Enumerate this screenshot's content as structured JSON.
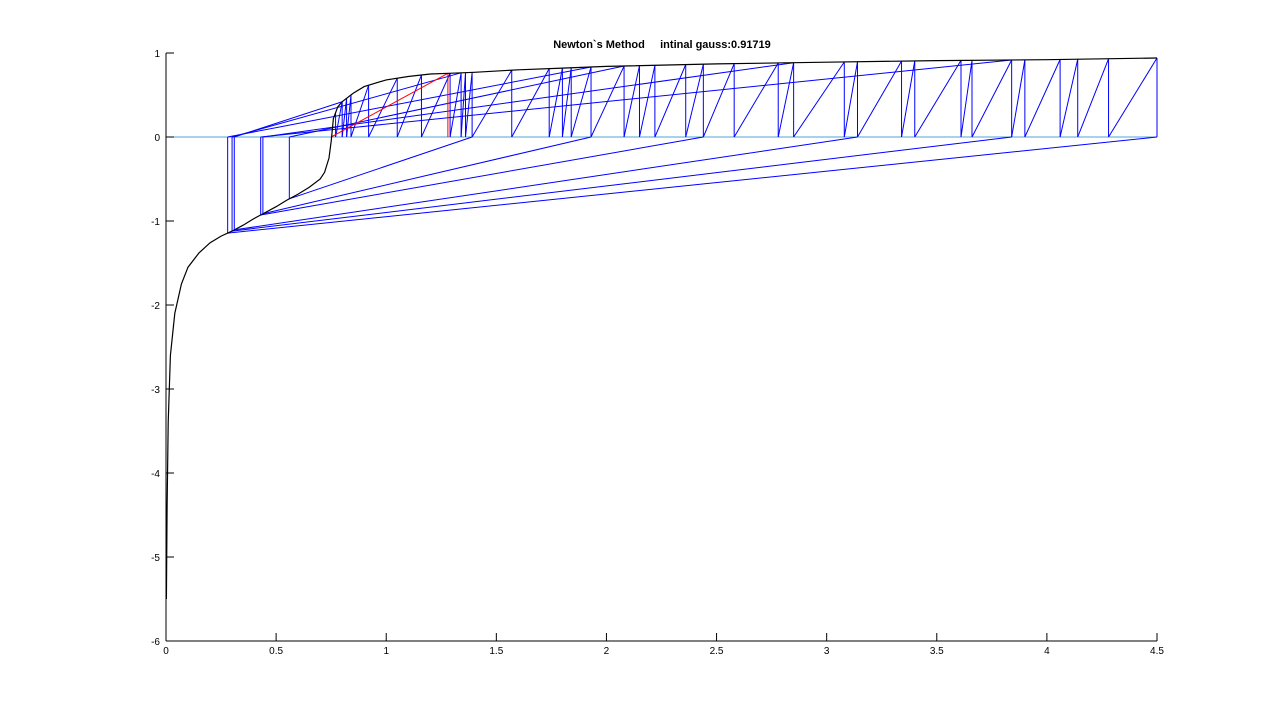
{
  "chart_data": {
    "type": "line",
    "title": "Newton`s Method     intinal gauss:0.91719",
    "xlabel": "",
    "ylabel": "",
    "xlim": [
      0,
      4.5
    ],
    "ylim": [
      -6,
      1
    ],
    "x_ticks": [
      0,
      0.5,
      1,
      1.5,
      2,
      2.5,
      3,
      3.5,
      4,
      4.5
    ],
    "x_tick_labels": [
      "0",
      "0.5",
      "1",
      "1.5",
      "2",
      "2.5",
      "3",
      "3.5",
      "4",
      "4.5"
    ],
    "y_ticks": [
      1,
      0,
      -1,
      -2,
      -3,
      -4,
      -5,
      -6
    ],
    "y_tick_labels": [
      "1",
      "0",
      "-1",
      "-2",
      "-3",
      "-4",
      "-5",
      "-6"
    ],
    "grid": false,
    "legend": "none",
    "colors": {
      "function": "#000000",
      "iterations": "#0000ff",
      "final_iteration": "#ff0000",
      "zero_line": "#4da6d9"
    },
    "series": [
      {
        "role": "function",
        "x": [
          0.002,
          0.005,
          0.01,
          0.02,
          0.04,
          0.07,
          0.1,
          0.15,
          0.2,
          0.25,
          0.3,
          0.35,
          0.4,
          0.45,
          0.5,
          0.55,
          0.6,
          0.65,
          0.7,
          0.72,
          0.74,
          0.75,
          0.76,
          0.78,
          0.8,
          0.85,
          0.9,
          1.0,
          1.1,
          1.2,
          1.3,
          1.4,
          1.6,
          1.8,
          2.0,
          2.5,
          3.0,
          3.5,
          4.0,
          4.5
        ],
        "y": [
          -5.5,
          -4.4,
          -3.4,
          -2.6,
          -2.1,
          -1.75,
          -1.55,
          -1.38,
          -1.26,
          -1.18,
          -1.12,
          -1.05,
          -0.97,
          -0.9,
          -0.83,
          -0.75,
          -0.68,
          -0.6,
          -0.5,
          -0.42,
          -0.25,
          -0.05,
          0.22,
          0.36,
          0.42,
          0.52,
          0.6,
          0.68,
          0.72,
          0.75,
          0.76,
          0.77,
          0.8,
          0.82,
          0.84,
          0.87,
          0.89,
          0.91,
          0.92,
          0.94
        ]
      },
      {
        "role": "zero_line",
        "x": [
          0,
          4.5
        ],
        "y": [
          0,
          0
        ]
      }
    ],
    "iterations_x": [
      4.5,
      4.28,
      4.14,
      4.06,
      3.9,
      3.84,
      3.66,
      3.61,
      3.4,
      3.34,
      3.14,
      3.08,
      2.85,
      2.78,
      2.58,
      2.44,
      2.36,
      2.22,
      2.15,
      2.08,
      1.93,
      1.84,
      1.8,
      1.74,
      1.57,
      1.39,
      1.36,
      1.34,
      1.29,
      1.16,
      1.05,
      0.92,
      0.84,
      0.82,
      0.8,
      0.77
    ],
    "final_iteration_x": [
      1.28,
      0.75
    ],
    "chaotic_iterations_x": [
      0.28,
      0.3,
      0.31,
      0.43,
      0.44,
      0.56
    ]
  }
}
